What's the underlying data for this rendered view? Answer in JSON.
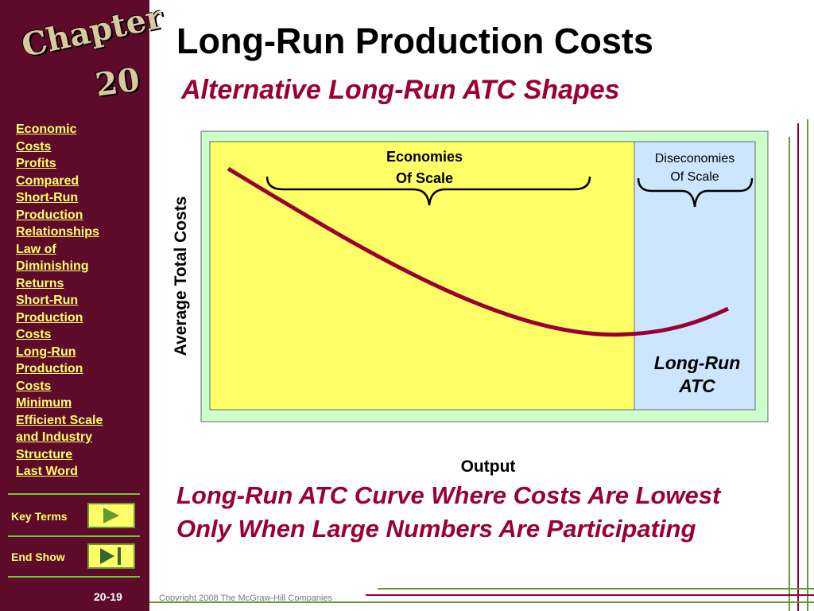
{
  "sidebar": {
    "logo_word": "Chapter",
    "logo_number": "20",
    "links": [
      {
        "lines": [
          "Economic",
          "Costs"
        ]
      },
      {
        "lines": [
          "Profits",
          "Compared"
        ]
      },
      {
        "lines": [
          "Short-Run",
          "Production",
          "Relationships"
        ]
      },
      {
        "lines": [
          "Law of",
          "Diminishing",
          "Returns"
        ]
      },
      {
        "lines": [
          "Short-Run",
          "Production",
          "Costs"
        ]
      },
      {
        "lines": [
          "Long-Run",
          "Production",
          "Costs"
        ]
      },
      {
        "lines": [
          "Minimum",
          "Efficient Scale",
          "and Industry",
          "Structure"
        ]
      },
      {
        "lines": [
          "Last Word"
        ]
      }
    ],
    "buttons": [
      "Key Terms",
      "End Show"
    ],
    "page_number": "20-19"
  },
  "header": {
    "title": "Long-Run Production Costs",
    "subtitle": "Alternative Long-Run ATC Shapes"
  },
  "diagram": {
    "y_label": "Average Total Costs",
    "x_label": "Output",
    "economies": [
      "Economies",
      "Of Scale"
    ],
    "diseconomies": [
      "Diseconomies",
      "Of Scale"
    ],
    "curve_label": [
      "Long-Run",
      "ATC"
    ]
  },
  "caption": "Long-Run ATC Curve Where Costs Are Lowest Only When Large Numbers Are Participating",
  "footer": {
    "copyright": "Copyright 2008 The McGraw-Hill Companies"
  }
}
